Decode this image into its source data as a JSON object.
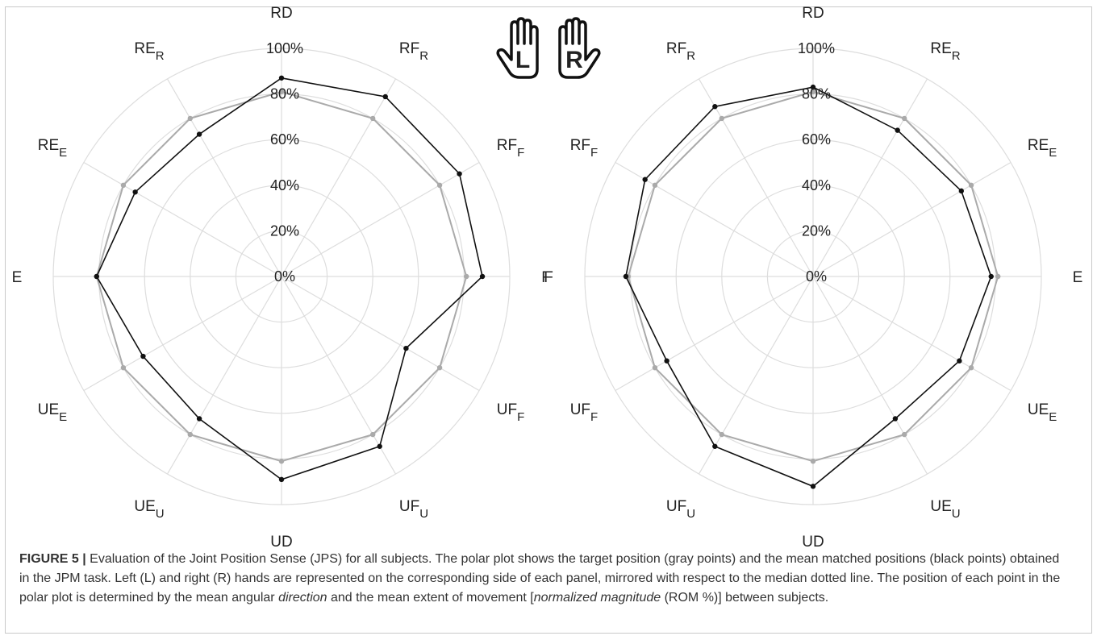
{
  "figure_icons": [
    {
      "name": "left-hand-icon",
      "letter": "L"
    },
    {
      "name": "right-hand-icon",
      "letter": "R"
    }
  ],
  "caption": {
    "label": "FIGURE 5 |",
    "segments": [
      {
        "text": " Evaluation of the Joint Position Sense (JPS) for all subjects. The polar plot shows the target position (gray points) and the mean matched positions (black points) obtained in the JPM task. Left (L) and right (R) hands are represented on the corresponding side of each panel, mirrored with respect to the median dotted line. The position of each point in the polar plot is determined by the mean angular ",
        "italic": false
      },
      {
        "text": "direction",
        "italic": true
      },
      {
        "text": " and the mean extent of movement [",
        "italic": false
      },
      {
        "text": "normalized magnitude",
        "italic": true
      },
      {
        "text": " (ROM %)] between subjects.",
        "italic": false
      }
    ]
  },
  "colors": {
    "target": "#aaaaaa",
    "matched": "#111111",
    "grid": "#dddddd"
  },
  "chart_data": [
    {
      "type": "radar",
      "panel": "left",
      "radial_ticks": [
        "0%",
        "20%",
        "40%",
        "60%",
        "80%",
        "100%"
      ],
      "rlim": [
        0,
        100
      ],
      "grid": true,
      "directions": [
        {
          "label": "RD",
          "sub": ""
        },
        {
          "label": "RF",
          "sub": "R"
        },
        {
          "label": "RF",
          "sub": "F"
        },
        {
          "label": "F",
          "sub": ""
        },
        {
          "label": "UF",
          "sub": "F"
        },
        {
          "label": "UF",
          "sub": "U"
        },
        {
          "label": "UD",
          "sub": ""
        },
        {
          "label": "UE",
          "sub": "U"
        },
        {
          "label": "UE",
          "sub": "E"
        },
        {
          "label": "E",
          "sub": ""
        },
        {
          "label": "RE",
          "sub": "E"
        },
        {
          "label": "RE",
          "sub": "R"
        }
      ],
      "series": [
        {
          "role": "target",
          "values": [
            81,
            80,
            80,
            81,
            80,
            80,
            81,
            80,
            80,
            81,
            80,
            80
          ]
        },
        {
          "role": "matched",
          "values": [
            87,
            91,
            90,
            88,
            63,
            86,
            89,
            72,
            70,
            81,
            74,
            72
          ]
        }
      ]
    },
    {
      "type": "radar",
      "panel": "right",
      "radial_ticks": [
        "0%",
        "20%",
        "40%",
        "60%",
        "80%",
        "100%"
      ],
      "rlim": [
        0,
        100
      ],
      "grid": true,
      "directions": [
        {
          "label": "RD",
          "sub": ""
        },
        {
          "label": "RE",
          "sub": "R"
        },
        {
          "label": "RE",
          "sub": "E"
        },
        {
          "label": "E",
          "sub": ""
        },
        {
          "label": "UE",
          "sub": "E"
        },
        {
          "label": "UE",
          "sub": "U"
        },
        {
          "label": "UD",
          "sub": ""
        },
        {
          "label": "UF",
          "sub": "U"
        },
        {
          "label": "UF",
          "sub": "F"
        },
        {
          "label": "F",
          "sub": ""
        },
        {
          "label": "RF",
          "sub": "F"
        },
        {
          "label": "RF",
          "sub": "R"
        }
      ],
      "series": [
        {
          "role": "target",
          "values": [
            81,
            80,
            80,
            81,
            80,
            80,
            81,
            80,
            80,
            81,
            80,
            80
          ]
        },
        {
          "role": "matched",
          "values": [
            83,
            74,
            75,
            78,
            74,
            72,
            92,
            86,
            74,
            82,
            85,
            86
          ]
        }
      ]
    }
  ]
}
